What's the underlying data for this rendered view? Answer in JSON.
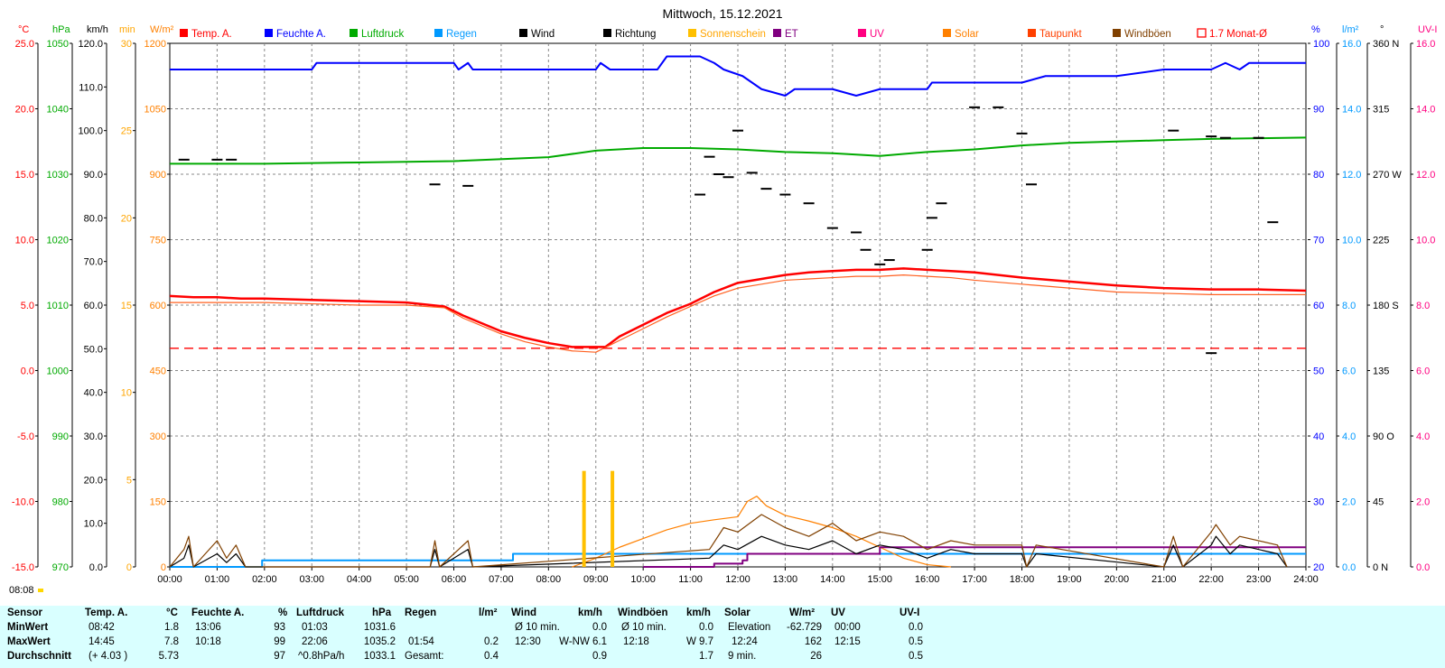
{
  "chart_data": {
    "type": "line",
    "title": "Mittwoch, 15.12.2021",
    "x_ticks": [
      "00:00",
      "01:00",
      "02:00",
      "03:00",
      "04:00",
      "05:00",
      "06:00",
      "07:00",
      "08:00",
      "09:00",
      "10:00",
      "11:00",
      "12:00",
      "13:00",
      "14:00",
      "15:00",
      "16:00",
      "17:00",
      "18:00",
      "19:00",
      "20:00",
      "21:00",
      "22:00",
      "23:00",
      "24:00"
    ],
    "xlim": [
      0,
      24
    ],
    "grid": true,
    "legend": [
      {
        "label": "Temp. A.",
        "color": "#ff0000",
        "style": "filled"
      },
      {
        "label": "Feuchte A.",
        "color": "#0000ff",
        "style": "filled"
      },
      {
        "label": "Luftdruck",
        "color": "#00aa00",
        "style": "filled"
      },
      {
        "label": "Regen",
        "color": "#0099ff",
        "style": "filled"
      },
      {
        "label": "Wind",
        "color": "#000000",
        "style": "filled"
      },
      {
        "label": "Richtung",
        "color": "#000000",
        "style": "filled"
      },
      {
        "label": "Sonnenschein",
        "color": "#ffc000",
        "style": "filled"
      },
      {
        "label": "ET",
        "color": "#800080",
        "style": "filled"
      },
      {
        "label": "UV",
        "color": "#ff0080",
        "style": "filled"
      },
      {
        "label": "Solar",
        "color": "#ff8000",
        "style": "filled"
      },
      {
        "label": "Taupunkt",
        "color": "#ff4000",
        "style": "filled"
      },
      {
        "label": "Windböen",
        "color": "#804000",
        "style": "filled"
      },
      {
        "label": "1.7 Monat-Ø",
        "color": "#ff0000",
        "style": "outline"
      }
    ],
    "axes_left": [
      {
        "unit": "°C",
        "color": "#ff0000",
        "ticks": [
          "25.0",
          "20.0",
          "15.0",
          "10.0",
          "5.0",
          "0.0",
          "-5.0",
          "-10.0",
          "-15.0"
        ]
      },
      {
        "unit": "hPa",
        "color": "#00aa00",
        "ticks": [
          "1050",
          "1040",
          "1030",
          "1020",
          "1010",
          "1000",
          "990",
          "980",
          "970"
        ]
      },
      {
        "unit": "km/h",
        "color": "#000000",
        "ticks": [
          "120.0",
          "110.0",
          "100.0",
          "90.0",
          "80.0",
          "70.0",
          "60.0",
          "50.0",
          "40.0",
          "30.0",
          "20.0",
          "10.0",
          "0.0"
        ]
      },
      {
        "unit": "min",
        "color": "#ffa500",
        "ticks": [
          "30",
          "25",
          "20",
          "15",
          "10",
          "5",
          "0"
        ]
      },
      {
        "unit": "W/m²",
        "color": "#ff8000",
        "ticks": [
          "1200",
          "1050",
          "900",
          "750",
          "600",
          "450",
          "300",
          "150",
          "0"
        ]
      }
    ],
    "axes_right": [
      {
        "unit": "%",
        "color": "#0000ff",
        "ticks": [
          "100",
          "90",
          "80",
          "70",
          "60",
          "50",
          "40",
          "30",
          "20"
        ]
      },
      {
        "unit": "l/m²",
        "color": "#0099ff",
        "ticks": [
          "16.0",
          "14.0",
          "12.0",
          "10.0",
          "8.0",
          "6.0",
          "4.0",
          "2.0",
          "0.0"
        ]
      },
      {
        "unit": "°",
        "color": "#000000",
        "ticks": [
          "360 N",
          "315",
          "270 W",
          "225",
          "180 S",
          "135",
          "90 O",
          "45",
          "0 N"
        ]
      },
      {
        "unit": "UV-I",
        "color": "#ff0080",
        "ticks": [
          "16.0",
          "14.0",
          "12.0",
          "10.0",
          "8.0",
          "6.0",
          "4.0",
          "2.0",
          "0.0"
        ]
      }
    ],
    "series": [
      {
        "name": "Temp. A.",
        "unit": "°C",
        "x": [
          0,
          0.5,
          1,
          1.5,
          2,
          3,
          4,
          5,
          5.8,
          6.2,
          7,
          7.5,
          8,
          8.5,
          8.7,
          9.2,
          9.5,
          10,
          10.5,
          11,
          11.5,
          12,
          12.5,
          13,
          13.5,
          14,
          14.5,
          15,
          15.5,
          16,
          16.5,
          17,
          18,
          19,
          20,
          21,
          22,
          23,
          24
        ],
        "values": [
          5.7,
          5.6,
          5.6,
          5.5,
          5.5,
          5.4,
          5.3,
          5.2,
          4.9,
          4.2,
          3.0,
          2.5,
          2.1,
          1.8,
          1.8,
          1.8,
          2.6,
          3.5,
          4.4,
          5.1,
          6.0,
          6.7,
          7.0,
          7.3,
          7.5,
          7.6,
          7.7,
          7.7,
          7.8,
          7.7,
          7.6,
          7.5,
          7.1,
          6.8,
          6.5,
          6.3,
          6.2,
          6.2,
          6.1
        ]
      },
      {
        "name": "Taupunkt",
        "unit": "°C",
        "x": [
          0,
          1,
          2,
          3,
          4,
          5,
          5.8,
          6.2,
          7,
          7.5,
          8,
          8.5,
          9,
          9.5,
          10,
          10.5,
          11,
          11.5,
          12,
          12.5,
          13,
          13.5,
          14,
          14.5,
          15,
          15.5,
          16,
          16.5,
          17,
          18,
          19,
          20,
          21,
          22,
          23,
          24
        ],
        "values": [
          5.2,
          5.2,
          5.2,
          5.1,
          5.0,
          5.0,
          4.8,
          4.0,
          2.8,
          2.2,
          1.8,
          1.5,
          1.4,
          2.3,
          3.2,
          4.1,
          4.9,
          5.7,
          6.3,
          6.6,
          6.9,
          7.0,
          7.1,
          7.2,
          7.2,
          7.3,
          7.2,
          7.1,
          6.9,
          6.6,
          6.3,
          6.0,
          5.9,
          5.8,
          5.8,
          5.8
        ]
      },
      {
        "name": "1.7 Monat-Ø",
        "unit": "°C",
        "x": [
          0,
          24
        ],
        "values": [
          1.7,
          1.7
        ]
      },
      {
        "name": "Feuchte A.",
        "unit": "%",
        "x": [
          0,
          3,
          3.1,
          6,
          6.1,
          6.3,
          6.4,
          9,
          9.1,
          9.3,
          10.3,
          10.5,
          11.2,
          11.5,
          11.7,
          12.1,
          12.5,
          13,
          13.2,
          14,
          14.5,
          15,
          15.1,
          16,
          16.1,
          17,
          18,
          18.5,
          19,
          20,
          21,
          22,
          22.3,
          22.6,
          22.8,
          24
        ],
        "values": [
          96,
          96,
          97,
          97,
          96,
          97,
          96,
          96,
          97,
          96,
          96,
          98,
          98,
          97,
          96,
          95,
          93,
          92,
          93,
          93,
          92,
          93,
          93,
          93,
          94,
          94,
          94,
          95,
          95,
          95,
          96,
          96,
          97,
          96,
          97,
          97
        ]
      },
      {
        "name": "Luftdruck",
        "unit": "hPa",
        "x": [
          0,
          2,
          4,
          6,
          8,
          9,
          10,
          11,
          12,
          13,
          14,
          15,
          16,
          17,
          18,
          19,
          20,
          21,
          22,
          23,
          24
        ],
        "values": [
          1031.6,
          1031.6,
          1031.8,
          1032.0,
          1032.6,
          1033.6,
          1034.0,
          1034.0,
          1033.8,
          1033.4,
          1033.2,
          1032.8,
          1033.4,
          1033.8,
          1034.4,
          1034.8,
          1035.0,
          1035.2,
          1035.4,
          1035.5,
          1035.6
        ]
      },
      {
        "name": "Regen",
        "unit": "l/m²",
        "x": [
          0,
          1.9,
          1.95,
          7.2,
          7.25,
          24
        ],
        "values": [
          0,
          0,
          0.2,
          0.2,
          0.4,
          0.4
        ]
      },
      {
        "name": "Solar",
        "unit": "W/m²",
        "x": [
          8.5,
          9,
          9.5,
          10,
          10.5,
          11,
          11.5,
          12,
          12.2,
          12.4,
          12.6,
          13,
          13.5,
          14,
          14.5,
          15,
          15.5,
          16,
          16.5
        ],
        "values": [
          0,
          20,
          45,
          65,
          85,
          100,
          108,
          115,
          150,
          162,
          140,
          118,
          105,
          90,
          70,
          45,
          20,
          5,
          0
        ]
      },
      {
        "name": "ET",
        "unit": "l/m²",
        "x": [
          10,
          11.5,
          12.1,
          12.2,
          15,
          24
        ],
        "values": [
          0,
          0.1,
          0.2,
          0.4,
          0.6,
          0.6
        ]
      },
      {
        "name": "Wind",
        "unit": "km/h",
        "x": [
          0,
          0.3,
          0.4,
          0.5,
          1,
          1.2,
          1.4,
          1.6,
          5.5,
          5.6,
          5.7,
          6.3,
          6.4,
          11.4,
          11.7,
          12,
          12.5,
          13,
          13.5,
          14,
          14.5,
          15,
          15.5,
          16,
          16.5,
          17,
          18,
          18.1,
          18.3,
          21,
          21.2,
          21.4,
          22,
          22.1,
          22.4,
          22.6,
          23.4,
          23.6
        ],
        "values": [
          0,
          2,
          5,
          0,
          3,
          1,
          3,
          0,
          0,
          4,
          0,
          4,
          0,
          2,
          5,
          4,
          7,
          5,
          4,
          6,
          3,
          5,
          4,
          2,
          4,
          3,
          3,
          0,
          3,
          0,
          5,
          0,
          5,
          7,
          3,
          5,
          3,
          0
        ]
      },
      {
        "name": "Windböen",
        "unit": "km/h",
        "x": [
          0,
          0.3,
          0.4,
          0.5,
          1,
          1.2,
          1.4,
          1.6,
          5.5,
          5.6,
          5.7,
          6.3,
          6.4,
          11.4,
          11.7,
          12,
          12.5,
          13,
          13.5,
          14,
          14.5,
          15,
          15.5,
          16,
          16.5,
          17,
          18,
          18.1,
          18.3,
          21,
          21.2,
          21.4,
          22,
          22.1,
          22.4,
          22.6,
          23.4,
          23.6
        ],
        "values": [
          0,
          4,
          7,
          0,
          6,
          2,
          5,
          0,
          0,
          6,
          0,
          6,
          0,
          4,
          9,
          8,
          12,
          9,
          7,
          10,
          6,
          8,
          7,
          4,
          6,
          5,
          5,
          0,
          5,
          0,
          7,
          0,
          8,
          9.7,
          5,
          7,
          5,
          0
        ]
      },
      {
        "name": "Sonnenschein",
        "unit": "min",
        "x": [
          8.75,
          9.35
        ],
        "values": [
          5.5,
          5.5
        ]
      }
    ],
    "richtung_deg": [
      [
        0.3,
        280
      ],
      [
        1,
        280
      ],
      [
        1.3,
        280
      ],
      [
        5.6,
        263
      ],
      [
        6.3,
        262
      ],
      [
        11.2,
        256
      ],
      [
        11.4,
        282
      ],
      [
        11.6,
        270
      ],
      [
        11.8,
        268
      ],
      [
        12.0,
        300
      ],
      [
        12.3,
        271
      ],
      [
        12.6,
        260
      ],
      [
        13,
        256
      ],
      [
        13.5,
        250
      ],
      [
        14,
        233
      ],
      [
        14.5,
        230
      ],
      [
        14.7,
        218
      ],
      [
        15,
        208
      ],
      [
        15.2,
        211
      ],
      [
        16,
        218
      ],
      [
        16.1,
        240
      ],
      [
        16.3,
        250
      ],
      [
        17,
        316
      ],
      [
        17.5,
        316
      ],
      [
        18,
        298
      ],
      [
        18.2,
        263
      ],
      [
        21.2,
        300
      ],
      [
        22,
        296
      ],
      [
        22.3,
        295
      ],
      [
        23,
        295
      ],
      [
        23.3,
        237
      ],
      [
        22.0,
        147
      ]
    ],
    "bottom_time": "08:08"
  },
  "stats": {
    "headers": {
      "sensor": "Sensor",
      "temp": "Temp. A.",
      "temp_unit": "°C",
      "feuchte": "Feuchte A.",
      "feuchte_unit": "%",
      "luft": "Luftdruck",
      "luft_unit": "hPa",
      "regen": "Regen",
      "regen_unit": "l/m²",
      "wind": "Wind",
      "wind_unit": "km/h",
      "boen": "Windböen",
      "boen_unit": "km/h",
      "solar": "Solar",
      "solar_unit": "W/m²",
      "uv": "UV",
      "uv_unit": "UV-I"
    },
    "rows": {
      "min": {
        "label": "MinWert",
        "temp_t": "08:42",
        "temp_v": "1.8",
        "feuchte_t": "13:06",
        "feuchte_v": "93",
        "luft_t": "01:03",
        "luft_v": "1031.6",
        "regen_t": "",
        "regen_v": "",
        "wind_t": "Ø 10 min.",
        "wind_v": "0.0",
        "boen_t": "Ø 10 min.",
        "boen_v": "0.0",
        "solar_t": "Elevation",
        "solar_v": "-62.729",
        "uv_t": "00:00",
        "uv_v": "0.0"
      },
      "max": {
        "label": "MaxWert",
        "temp_t": "14:45",
        "temp_v": "7.8",
        "feuchte_t": "10:18",
        "feuchte_v": "99",
        "luft_t": "22:06",
        "luft_v": "1035.2",
        "regen_t": "01:54",
        "regen_v": "0.2",
        "wind_t": "12:30",
        "wind_d": "W-NW 6.1",
        "boen_t": "12:18",
        "boen_v": "W 9.7",
        "solar_t": "12:24",
        "solar_v": "162",
        "uv_t": "12:15",
        "uv_v": "0.5"
      },
      "avg": {
        "label": "Durchschnitt",
        "temp_t": "(+ 4.03 )",
        "temp_v": "5.73",
        "feuchte_v": "97",
        "luft_t": "^0.8hPa/h",
        "luft_v": "1033.1",
        "regen_t": "Gesamt:",
        "regen_v": "0.4",
        "wind_v": "0.9",
        "boen_v": "1.7",
        "solar_t": "9 min.",
        "solar_v": "26",
        "uv_v": "0.5"
      }
    }
  }
}
